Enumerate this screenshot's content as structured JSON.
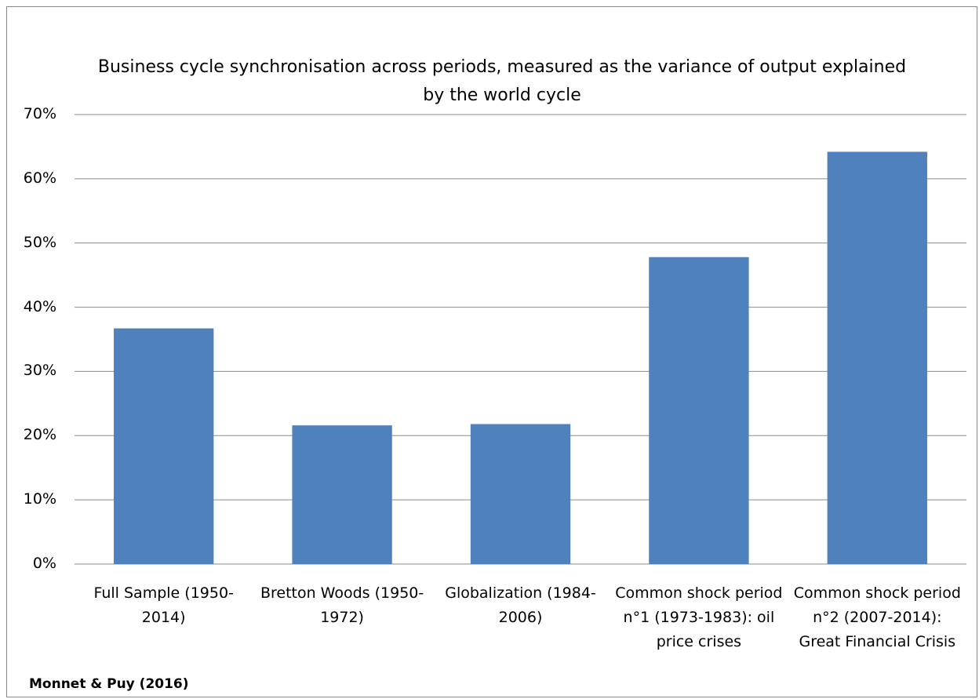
{
  "chart_data": {
    "type": "bar",
    "title": "Business cycle synchronisation across periods, measured as the variance of output explained by the world cycle",
    "categories": [
      "Full Sample (1950-2014)",
      "Bretton Woods (1950-1972)",
      "Globalization (1984-2006)",
      "Common shock period n°1 (1973-1983): oil price crises",
      "Common shock period n°2 (2007-2014): Great Financial Crisis"
    ],
    "values": [
      36.7,
      21.6,
      21.8,
      47.8,
      64.2
    ],
    "color": "#4f81bd",
    "ylim": [
      0,
      70
    ],
    "yticks": [
      {
        "value": 0,
        "label": "0%"
      },
      {
        "value": 10,
        "label": "10%"
      },
      {
        "value": 20,
        "label": "20%"
      },
      {
        "value": 30,
        "label": "30%"
      },
      {
        "value": 40,
        "label": "40%"
      },
      {
        "value": 50,
        "label": "50%"
      },
      {
        "value": 60,
        "label": "60%"
      },
      {
        "value": 70,
        "label": "70%"
      }
    ],
    "grid": true,
    "source": "Monnet & Puy (2016)"
  }
}
